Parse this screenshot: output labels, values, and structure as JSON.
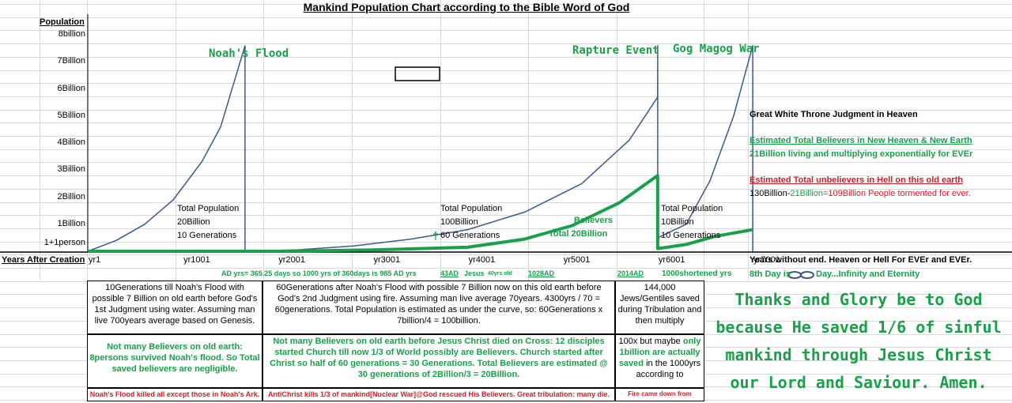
{
  "chart_data": {
    "type": "line",
    "title": "Mankind Population Chart according to the Bible Word of God",
    "ylabel": "Population",
    "xlabel": "Years After Creation",
    "y_ticks": [
      "1+1person",
      "1Billion",
      "2Billion",
      "3Billion",
      "4Billion",
      "5Billion",
      "6Billion",
      "7Billion",
      "8billion"
    ],
    "x_ticks": [
      "yr1",
      "yr1001",
      "yr2001",
      "yr3001",
      "yr4001",
      "yr5001",
      "yr6001",
      "yr7001"
    ],
    "x_end_label": "Years without end. Heaven or Hell For EVEr and EVEr.",
    "ylim": [
      0,
      8.5
    ],
    "xlim": [
      1,
      7400
    ],
    "series": [
      {
        "name": "Total Population",
        "color": "#3a5a8a",
        "segments": [
          {
            "x": [
              1,
              300,
              600,
              900,
              1200,
              1400,
              1656,
              1656
            ],
            "y": [
              0,
              0.4,
              1.0,
              1.9,
              3.3,
              4.6,
              7.6,
              0
            ]
          },
          {
            "x": [
              1656,
              2200,
              2800,
              3400,
              4000,
              4600,
              5200,
              5700,
              6000,
              6001,
              6001
            ],
            "y": [
              0,
              0.05,
              0.2,
              0.45,
              0.8,
              1.45,
              2.5,
              4.1,
              5.7,
              7.6,
              0.5
            ]
          },
          {
            "x": [
              6001,
              6300,
              6550,
              6800,
              7001,
              7001
            ],
            "y": [
              0.5,
              1.0,
              2.6,
              5.0,
              7.6,
              0
            ]
          }
        ]
      },
      {
        "name": "Believers",
        "color": "#1aa04a",
        "segments": [
          {
            "x": [
              1,
              2000,
              3000,
              4000,
              4600,
              5100,
              5600,
              6000,
              6001,
              6300,
              6600,
              7001
            ],
            "y": [
              0,
              0,
              0.05,
              0.15,
              0.45,
              0.95,
              1.8,
              2.8,
              0.1,
              0.25,
              0.55,
              0.8
            ]
          }
        ]
      }
    ],
    "annotations": {
      "noahs_flood": "Noah's Flood",
      "rapture_event": "Rapture Event",
      "gog_magog": "Gog Magog War",
      "tp1_a": "Total Population",
      "tp1_b": "20Billion",
      "tp1_c": "10 Generations",
      "tp2_a": "Total Population",
      "tp2_b": "100Billion",
      "tp2_c": "60 Generations",
      "tp3_a": "Total Population",
      "tp3_b": "10Billion",
      "tp3_c": "10 Generations",
      "believers": "Believers",
      "believers_total": "Total  20Billion",
      "cross": "†",
      "gwt": "Great White Throne Judgment in Heaven",
      "etb_title": "Estimated Total Believers in New Heaven & New Earth",
      "etb_text": "21Billion living and multiplying exponentially for EVEr",
      "etu_title": "Estimated Total unbelievers in Hell on this old earth",
      "etu_a": "130Billion-",
      "etu_b": "21Billion",
      "etu_c": "=109Billion People tormented for ever.",
      "ad_note": "AD yrs= 365.25 days so 1000 yrs of 360days is 985 AD yrs",
      "ad43": "43AD",
      "jesus": "Jesus",
      "yrs_old": "40yrs old",
      "ad1028": "1028AD",
      "ad2014": "2014AD",
      "shortened": "1000shortened yrs",
      "eighth_a": "8th Day is",
      "eighth_b": "Day...Infinity and Eternity"
    }
  },
  "table": {
    "c1_top": "10Generations till Noah's Flood with possible 7 Billion on old earth before God's 1st Judgment using water. Assuming man live 700years average based on Genesis.",
    "c1_mid": "Not many Believers on old earth: 8persons survived Noah's flood. So Total saved believers are negligible.",
    "c1_bot": "Noah's Flood killed all except those in Noah's Ark.",
    "c2_top": "60Generations after Noah's Flood with possible 7 Billion now on this old earth before God's 2nd Judgment using fire. Assuming man live average 70years. 4300yrs / 70 = 60generations. Total Population is estimated as under the curve, so: 60Generations x 7billion/4 = 100billion.",
    "c2_mid": "Not many Believers on old earth before Jesus Christ died on Cross: 12 disciples started Church till now 1/3 of World possibly are Believers. Church started after Christ so half of 60 generations = 30 Generations. Total Believers are estimated @ 30 generations of 2Billion/3 = 20Billion.",
    "c2_bot": "AntiChrist kills 1/3 of mankind[Nuclear War]@God rescued His Believers. Great tribulation: many die.",
    "c3_top": "144,000 Jews/Gentiles saved during Tribulation and then multiply",
    "c3_mid_a": "100x but maybe ",
    "c3_mid_b": "only 1billion are actually saved",
    "c3_mid_c": " in the 1000yrs according to",
    "c3_bot": "Fire came down from heaven"
  },
  "thanks": "Thanks and Glory be to God because He saved 1/6 of sinful mankind through Jesus Christ our Lord and Saviour. Amen."
}
